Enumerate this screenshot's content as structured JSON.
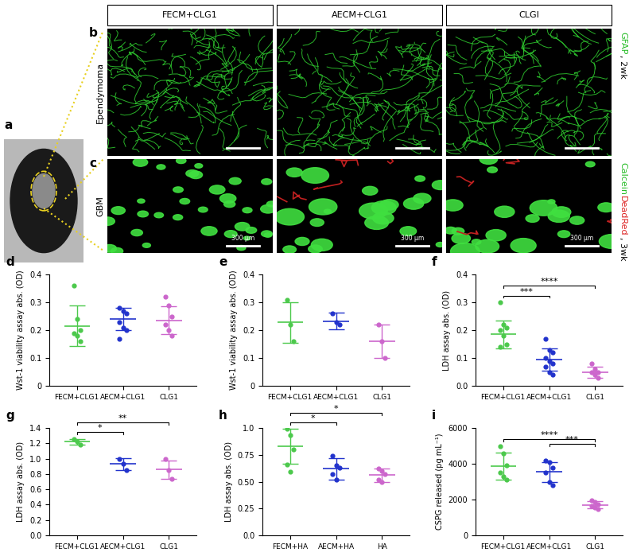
{
  "column_headers": [
    "FECM+CLG1",
    "AECM+CLG1",
    "CLGI"
  ],
  "image_panels": {
    "a": {
      "panel_label": "a"
    },
    "b": {
      "panel_label": "b",
      "row": "Ependymoma",
      "channels": [
        {
          "text": "GFAP",
          "color": "#22bb22"
        },
        {
          "text": ", 2wk",
          "color": "#000000"
        }
      ]
    },
    "c": {
      "panel_label": "c",
      "row": "GBM",
      "scale_bar": "300 µm",
      "channels": [
        {
          "text": "Calcein",
          "color": "#22bb22"
        },
        {
          "text": "DeadRed",
          "color": "#dd2222"
        },
        {
          "text": ", 3wk",
          "color": "#000000"
        }
      ]
    }
  },
  "chart_data": [
    {
      "panel_label": "d",
      "type": "scatter",
      "ylabel": "Wst-1 viability assay abs. (OD)",
      "categories": [
        "FECM+CLG1",
        "AECM+CLG1",
        "CLG1"
      ],
      "colors": [
        "#4cc94c",
        "#2233cc",
        "#cc66cc"
      ],
      "points": [
        [
          0.36,
          0.24,
          0.2,
          0.19,
          0.18,
          0.16
        ],
        [
          0.28,
          0.27,
          0.26,
          0.23,
          0.21,
          0.2,
          0.17
        ],
        [
          0.32,
          0.29,
          0.25,
          0.22,
          0.2,
          0.18
        ]
      ],
      "means": [
        0.215,
        0.24,
        0.235
      ],
      "sd": [
        0.073,
        0.04,
        0.05
      ],
      "ylim": [
        0,
        0.4
      ],
      "yticks": [
        0,
        0.1,
        0.2,
        0.3,
        0.4
      ],
      "significance": []
    },
    {
      "panel_label": "e",
      "type": "scatter",
      "ylabel": "Wst-1 viability assay abs. (OD)",
      "categories": [
        "FECM+CLG1",
        "AECM+CLG1",
        "CLG1"
      ],
      "colors": [
        "#4cc94c",
        "#2233cc",
        "#cc66cc"
      ],
      "points": [
        [
          0.31,
          0.22,
          0.16
        ],
        [
          0.26,
          0.23,
          0.22
        ],
        [
          0.22,
          0.16,
          0.1
        ]
      ],
      "means": [
        0.228,
        0.232,
        0.16
      ],
      "sd": [
        0.073,
        0.03,
        0.06
      ],
      "ylim": [
        0,
        0.4
      ],
      "yticks": [
        0,
        0.1,
        0.2,
        0.3,
        0.4
      ],
      "significance": []
    },
    {
      "panel_label": "f",
      "type": "scatter",
      "ylabel": "LDH assay abs. (OD)",
      "categories": [
        "FECM+CLG1",
        "AECM+CLG1",
        "CLG1"
      ],
      "colors": [
        "#4cc94c",
        "#2233cc",
        "#cc66cc"
      ],
      "points": [
        [
          0.3,
          0.22,
          0.21,
          0.2,
          0.18,
          0.15,
          0.14
        ],
        [
          0.17,
          0.13,
          0.12,
          0.1,
          0.09,
          0.08,
          0.07,
          0.05,
          0.04
        ],
        [
          0.08,
          0.06,
          0.05,
          0.05,
          0.04,
          0.03
        ]
      ],
      "means": [
        0.185,
        0.095,
        0.05
      ],
      "sd": [
        0.05,
        0.04,
        0.02
      ],
      "ylim": [
        0.0,
        0.4
      ],
      "yticks": [
        0.0,
        0.1,
        0.2,
        0.3,
        0.4
      ],
      "significance": [
        {
          "from": 0,
          "to": 1,
          "label": "***"
        },
        {
          "from": 0,
          "to": 2,
          "label": "****"
        }
      ]
    },
    {
      "panel_label": "g",
      "type": "scatter",
      "ylabel": "LDH assay abs. (OD)",
      "categories": [
        "FECM+CLG1",
        "AECM+CLG1",
        "CLG1"
      ],
      "colors": [
        "#4cc94c",
        "#2233cc",
        "#cc66cc"
      ],
      "points": [
        [
          1.26,
          1.22,
          1.18
        ],
        [
          1.0,
          0.93,
          0.85
        ],
        [
          1.0,
          0.85,
          0.74
        ]
      ],
      "means": [
        1.22,
        0.93,
        0.86
      ],
      "sd": [
        0.04,
        0.08,
        0.12
      ],
      "ylim": [
        0.0,
        1.4
      ],
      "yticks": [
        0.0,
        0.2,
        0.4,
        0.6,
        0.8,
        1.0,
        1.2,
        1.4
      ],
      "significance": [
        {
          "from": 0,
          "to": 1,
          "label": "*"
        },
        {
          "from": 0,
          "to": 2,
          "label": "**"
        }
      ]
    },
    {
      "panel_label": "h",
      "type": "scatter",
      "ylabel": "LDH assay abs. (OD)",
      "categories": [
        "FECM+HA",
        "AECM+HA",
        "HA"
      ],
      "colors": [
        "#4cc94c",
        "#2233cc",
        "#cc66cc"
      ],
      "points": [
        [
          0.99,
          0.93,
          0.8,
          0.66,
          0.59
        ],
        [
          0.74,
          0.65,
          0.63,
          0.57,
          0.52
        ],
        [
          0.62,
          0.6,
          0.57,
          0.52,
          0.5
        ]
      ],
      "means": [
        0.83,
        0.62,
        0.56
      ],
      "sd": [
        0.16,
        0.1,
        0.06
      ],
      "ylim": [
        0.0,
        1.0
      ],
      "yticks": [
        0.0,
        0.25,
        {
          "value": 0.5,
          "label": "0.50"
        },
        0.75,
        1.0
      ],
      "significance": [
        {
          "from": 0,
          "to": 1,
          "label": "*"
        },
        {
          "from": 0,
          "to": 2,
          "label": "*"
        }
      ]
    },
    {
      "panel_label": "i",
      "type": "scatter",
      "ylabel": "CSPG released (pg mL⁻¹)",
      "categories": [
        "FECM+CLG1",
        "AECM+CLG1",
        "CLG1"
      ],
      "colors": [
        "#4cc94c",
        "#2233cc",
        "#cc66cc"
      ],
      "points": [
        [
          5000,
          4600,
          3900,
          3500,
          3300,
          3100
        ],
        [
          4200,
          4100,
          3800,
          3500,
          3000,
          2800
        ],
        [
          1950,
          1850,
          1750,
          1650,
          1550,
          1450
        ]
      ],
      "means": [
        3870,
        3550,
        1700
      ],
      "sd": [
        740,
        550,
        200
      ],
      "ylim": [
        0,
        6000
      ],
      "yticks": [
        0,
        2000,
        4000,
        6000
      ],
      "significance": [
        {
          "from": 0,
          "to": 2,
          "label": "****"
        },
        {
          "from": 1,
          "to": 2,
          "label": "***"
        }
      ]
    }
  ]
}
